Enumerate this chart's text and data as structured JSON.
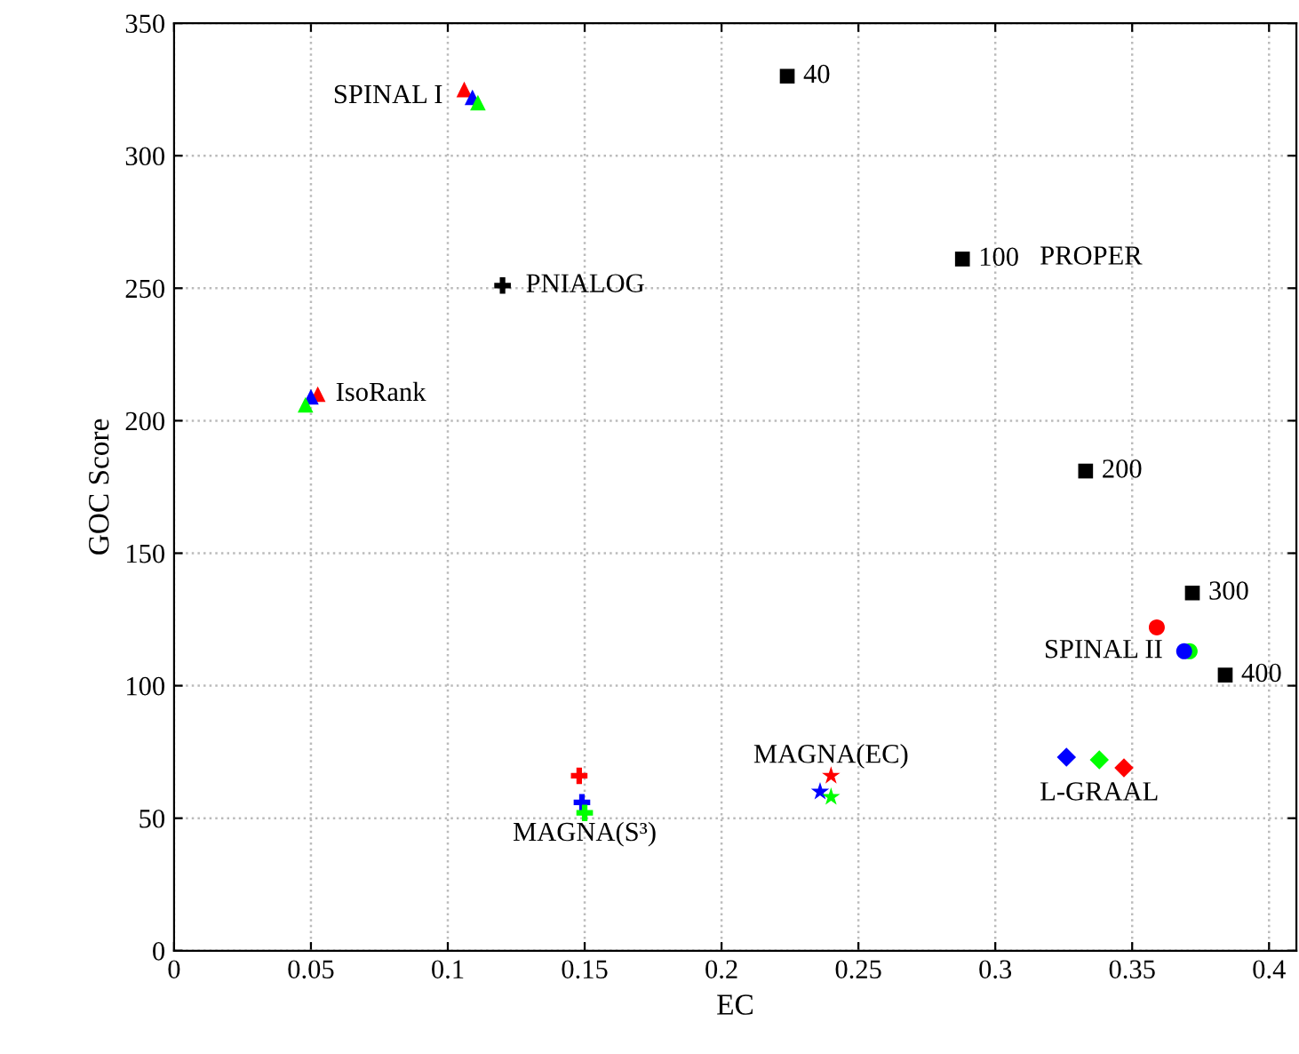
{
  "chart_data": {
    "type": "scatter",
    "xlabel": "EC",
    "ylabel": "GOC Score",
    "xlim": [
      0,
      0.41
    ],
    "ylim": [
      0,
      350
    ],
    "xticks": [
      0,
      0.05,
      0.1,
      0.15,
      0.2,
      0.25,
      0.3,
      0.35,
      0.4
    ],
    "yticks": [
      0,
      50,
      100,
      150,
      200,
      250,
      300,
      350
    ],
    "grid": true,
    "legend": false,
    "annotations": [
      "PROPER",
      {
        "text": "40",
        "x": 0.224,
        "y": 330
      },
      {
        "text": "100",
        "x": 0.288,
        "y": 261
      },
      {
        "text": "200",
        "x": 0.333,
        "y": 181
      },
      {
        "text": "300",
        "x": 0.372,
        "y": 135
      },
      {
        "text": "400",
        "x": 0.384,
        "y": 104
      }
    ],
    "series": [
      {
        "name": "SPINAL I",
        "marker": "triangle",
        "x": [
          0.106,
          0.109,
          0.111
        ],
        "values": [
          325,
          322,
          320
        ],
        "colors": [
          "#ff0000",
          "#0000ff",
          "#00ff00"
        ]
      },
      {
        "name": "IsoRank",
        "marker": "triangle",
        "x": [
          0.0525,
          0.05,
          0.048
        ],
        "values": [
          210,
          209,
          206
        ],
        "colors": [
          "#ff0000",
          "#0000ff",
          "#00ff00"
        ]
      },
      {
        "name": "PNIALOG",
        "marker": "cross",
        "x": [
          0.12
        ],
        "values": [
          251
        ],
        "colors": [
          "#000000"
        ]
      },
      {
        "marker": "square",
        "x": [
          0.224,
          0.288,
          0.333,
          0.372,
          0.384
        ],
        "values": [
          330,
          261,
          181,
          135,
          104
        ],
        "colors": [
          "#000000",
          "#000000",
          "#000000",
          "#000000",
          "#000000"
        ]
      },
      {
        "name": "SPINAL II",
        "marker": "circle",
        "x": [
          0.359,
          0.371,
          0.369
        ],
        "values": [
          122,
          113,
          113
        ],
        "colors": [
          "#ff0000",
          "#00ff00",
          "#0000ff"
        ]
      },
      {
        "name": "MAGNA(S³)",
        "marker": "cross",
        "x": [
          0.148,
          0.149,
          0.15
        ],
        "values": [
          66,
          56,
          52
        ],
        "colors": [
          "#ff0000",
          "#0000ff",
          "#00ff00"
        ]
      },
      {
        "name": "MAGNA(EC)",
        "marker": "star",
        "x": [
          0.24,
          0.236,
          0.24
        ],
        "values": [
          66,
          60,
          58
        ],
        "colors": [
          "#ff0000",
          "#0000ff",
          "#00ff00"
        ]
      },
      {
        "name": "L-GRAAL",
        "marker": "diamond",
        "x": [
          0.326,
          0.338,
          0.347
        ],
        "values": [
          73,
          72,
          69
        ],
        "colors": [
          "#0000ff",
          "#00ff00",
          "#ff0000"
        ]
      }
    ]
  }
}
